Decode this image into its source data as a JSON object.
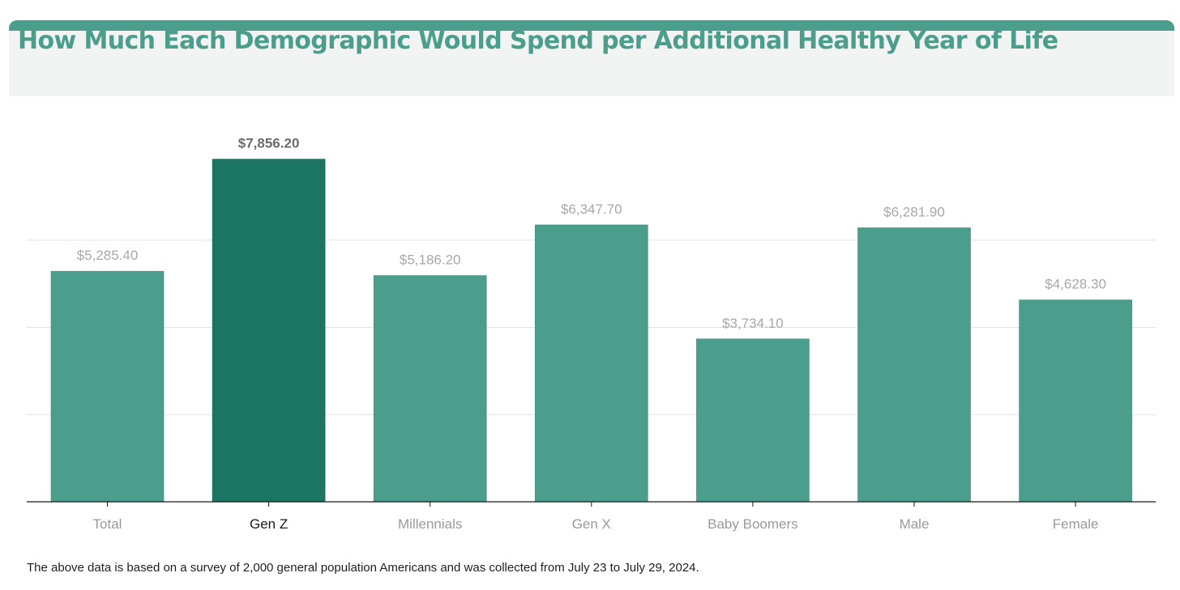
{
  "title": "How Much Each Demographic Would Spend per Additional Healthy Year of Life",
  "footnote": "The above data is based on a survey of 2,000 general population Americans and was collected from July 23 to July 29, 2024.",
  "colors": {
    "bar": "#4b9e8b",
    "highlight_bar": "#1b7562",
    "title": "#4b9e8b",
    "header_band": "#4b9e8b",
    "header_bg": "#f1f4f2",
    "gridline": "#e2e2e2",
    "axis": "#1a1a1a",
    "label": "#a8a8a8",
    "highlight_label": "#6b6b6b",
    "tick": "#9a9a9a",
    "highlight_tick": "#1a1a1a"
  },
  "chart_data": {
    "type": "bar",
    "categories": [
      "Total",
      "Gen Z",
      "Millennials",
      "Gen X",
      "Baby Boomers",
      "Male",
      "Female"
    ],
    "values": [
      5285.4,
      7856.2,
      5186.2,
      6347.7,
      3734.1,
      6281.9,
      4628.3
    ],
    "value_labels": [
      "$5,285.40",
      "$7,856.20",
      "$5,186.20",
      "$6,347.70",
      "$3,734.10",
      "$6,281.90",
      "$4,628.30"
    ],
    "highlight": "Gen Z",
    "ylim": [
      0,
      9000
    ],
    "gridlines": [
      2000,
      4000,
      6000
    ],
    "grid": true,
    "legend": "none"
  }
}
